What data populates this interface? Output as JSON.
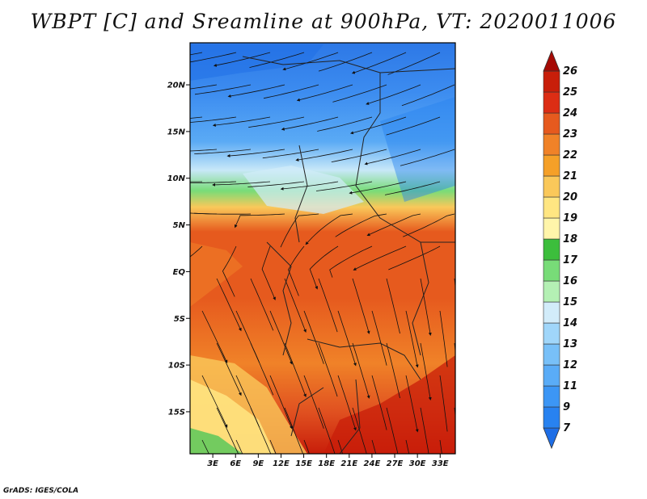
{
  "title": "WBPT [C] and Sreamline at 900hPa, VT: 2020011006",
  "credit": "GrADS: IGES/COLA",
  "map": {
    "lat_range": [
      -19.5,
      24.5
    ],
    "lon_range": [
      0,
      35
    ],
    "lat_ticks": [
      {
        "value": 20,
        "label": "20N"
      },
      {
        "value": 15,
        "label": "15N"
      },
      {
        "value": 10,
        "label": "10N"
      },
      {
        "value": 5,
        "label": "5N"
      },
      {
        "value": 0,
        "label": "EQ"
      },
      {
        "value": -5,
        "label": "5S"
      },
      {
        "value": -10,
        "label": "10S"
      },
      {
        "value": -15,
        "label": "15S"
      }
    ],
    "lon_ticks": [
      {
        "value": 3,
        "label": "3E"
      },
      {
        "value": 6,
        "label": "6E"
      },
      {
        "value": 9,
        "label": "9E"
      },
      {
        "value": 12,
        "label": "12E"
      },
      {
        "value": 15,
        "label": "15E"
      },
      {
        "value": 18,
        "label": "18E"
      },
      {
        "value": 21,
        "label": "21E"
      },
      {
        "value": 24,
        "label": "24E"
      },
      {
        "value": 27,
        "label": "27E"
      },
      {
        "value": 30,
        "label": "30E"
      },
      {
        "value": 33,
        "label": "33E"
      }
    ]
  },
  "colorbar": {
    "levels": [
      "7",
      "9",
      "11",
      "12",
      "13",
      "14",
      "15",
      "16",
      "17",
      "18",
      "19",
      "20",
      "21",
      "22",
      "23",
      "24",
      "25",
      "26"
    ],
    "colors": [
      "#1e6ee6",
      "#2882f0",
      "#3c96f5",
      "#5aacf7",
      "#78c0f8",
      "#a0d6fa",
      "#d2ecfa",
      "#b4f0b4",
      "#78dc78",
      "#3cbe3c",
      "#fff5aa",
      "#ffe682",
      "#fac85a",
      "#f5a028",
      "#f08228",
      "#e65a1e",
      "#dc2d14",
      "#c81e0a",
      "#a50a05"
    ]
  }
}
